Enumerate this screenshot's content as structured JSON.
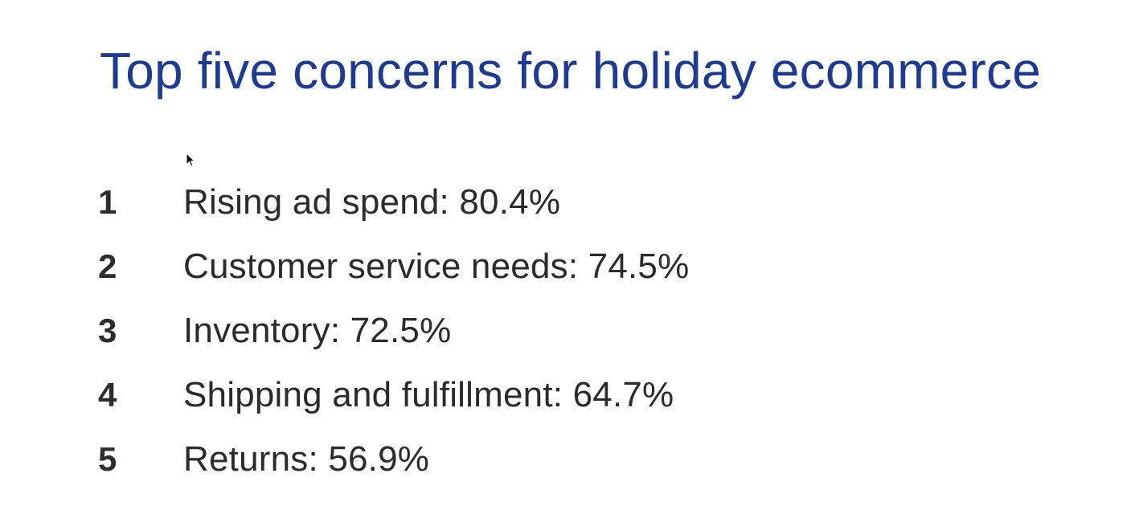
{
  "slide": {
    "title": "Top five concerns for holiday ecommerce",
    "title_color": "#1f3a93",
    "items": [
      {
        "number": "1",
        "text": "Rising ad spend: 80.4%"
      },
      {
        "number": "2",
        "text": "Customer service needs: 74.5%"
      },
      {
        "number": "3",
        "text": "Inventory: 72.5%"
      },
      {
        "number": "4",
        "text": "Shipping and fulfillment: 64.7%"
      },
      {
        "number": "5",
        "text": "Returns: 56.9%"
      }
    ]
  },
  "cursor": {
    "icon": "mouse-pointer-icon"
  }
}
